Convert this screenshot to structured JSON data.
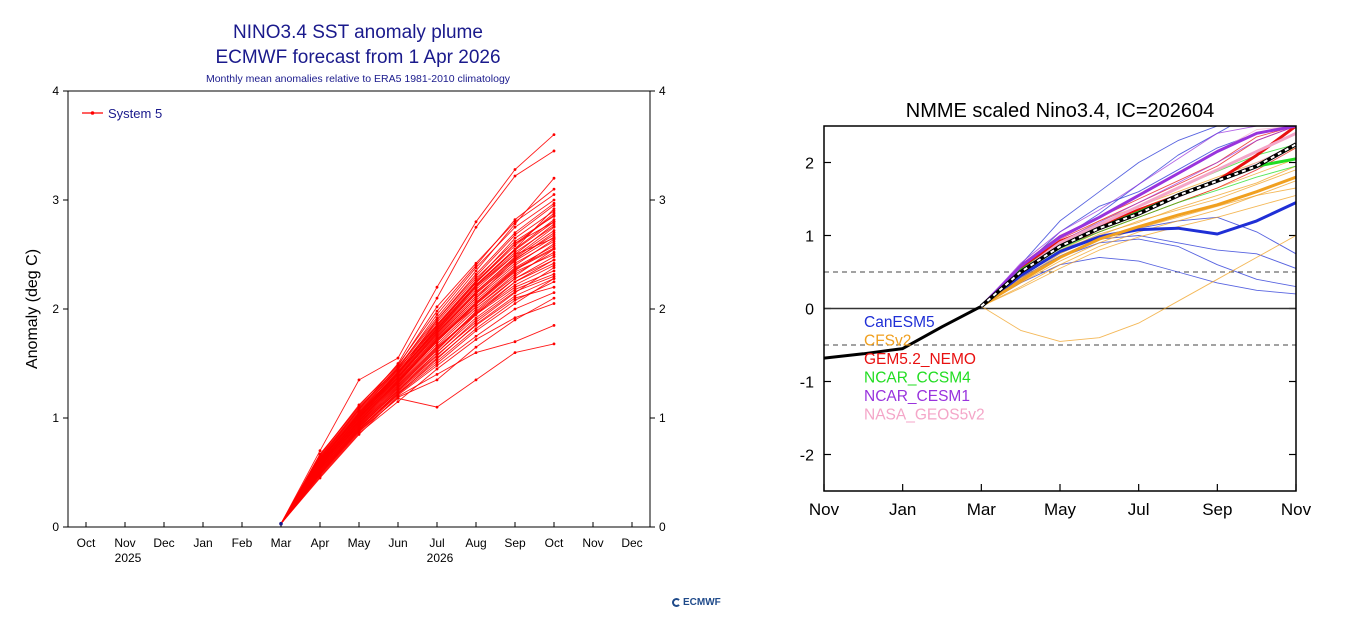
{
  "colors": {
    "ecmwf_title": "#1a1a8c",
    "ecmwf_series": "#ff0000",
    "nmme_canesm5": "#1f2fd6",
    "nmme_cfsv2": "#f0a020",
    "nmme_gem": "#e81010",
    "nmme_ncar_ccsm4": "#22dd22",
    "nmme_ncar_cesm1": "#9933dd",
    "nmme_nasa": "#f4a6c8",
    "nmme_observed": "#000000"
  },
  "chart_data": [
    {
      "type": "line",
      "title": "NINO3.4 SST anomaly plume",
      "subtitle": "ECMWF forecast from 1 Apr 2026",
      "caption": "Monthly mean anomalies relative to ERA5 1981-2010 climatology",
      "ylabel": "Anomaly (deg C)",
      "xlabel": "",
      "categories": [
        "Oct",
        "Nov",
        "Dec",
        "Jan",
        "Feb",
        "Mar",
        "Apr",
        "May",
        "Jun",
        "Jul",
        "Aug",
        "Sep",
        "Oct",
        "Nov",
        "Dec"
      ],
      "year_labels": [
        {
          "label": "2025",
          "category_index": 1
        },
        {
          "label": "2026",
          "category_index": 9
        }
      ],
      "ylim": [
        0,
        4
      ],
      "yticks": [
        "0",
        "1",
        "2",
        "3",
        "4"
      ],
      "legend": {
        "position": "top-left",
        "label": "System 5"
      },
      "series_name": "System 5",
      "series_color": "#ff0000",
      "start_index": 5,
      "start_value": 0.03,
      "members": [
        [
          0.03,
          0.62,
          1.02,
          1.41,
          1.82,
          2.22,
          2.55,
          2.92
        ],
        [
          0.03,
          0.55,
          0.95,
          1.32,
          1.72,
          2.02,
          2.3,
          2.55
        ],
        [
          0.03,
          0.7,
          1.35,
          1.55,
          2.2,
          2.8,
          3.28,
          3.6
        ],
        [
          0.03,
          0.66,
          1.12,
          1.48,
          2.02,
          2.42,
          2.8,
          3.05
        ],
        [
          0.03,
          0.5,
          0.9,
          1.22,
          1.5,
          1.8,
          2.05,
          2.28
        ],
        [
          0.03,
          0.58,
          1.0,
          1.4,
          1.9,
          2.3,
          2.68,
          2.95
        ],
        [
          0.03,
          0.45,
          0.85,
          1.2,
          1.4,
          1.6,
          1.7,
          1.85
        ],
        [
          0.03,
          0.6,
          1.05,
          1.45,
          1.85,
          2.25,
          2.6,
          2.8
        ],
        [
          0.03,
          0.52,
          0.92,
          1.25,
          1.6,
          1.95,
          2.25,
          2.45
        ],
        [
          0.03,
          0.48,
          0.88,
          1.18,
          1.1,
          1.35,
          1.6,
          1.68
        ],
        [
          0.03,
          0.64,
          1.08,
          1.5,
          2.1,
          2.75,
          3.22,
          3.45
        ],
        [
          0.03,
          0.57,
          0.98,
          1.35,
          1.75,
          2.1,
          2.45,
          2.7
        ],
        [
          0.03,
          0.53,
          0.94,
          1.3,
          1.65,
          1.95,
          2.2,
          2.35
        ],
        [
          0.03,
          0.61,
          1.03,
          1.42,
          1.8,
          2.2,
          2.5,
          2.65
        ],
        [
          0.03,
          0.46,
          0.86,
          1.15,
          1.45,
          1.72,
          1.92,
          2.05
        ],
        [
          0.03,
          0.59,
          1.01,
          1.38,
          1.78,
          2.15,
          2.48,
          2.75
        ],
        [
          0.03,
          0.56,
          0.97,
          1.33,
          1.7,
          2.05,
          2.35,
          2.6
        ],
        [
          0.03,
          0.63,
          1.06,
          1.44,
          1.88,
          2.28,
          2.62,
          2.85
        ],
        [
          0.03,
          0.49,
          0.89,
          1.24,
          1.55,
          1.85,
          2.1,
          2.2
        ],
        [
          0.03,
          0.67,
          1.1,
          1.46,
          1.95,
          2.38,
          2.75,
          3.0
        ],
        [
          0.03,
          0.54,
          0.93,
          1.28,
          1.62,
          1.98,
          2.28,
          2.48
        ],
        [
          0.03,
          0.51,
          0.91,
          1.26,
          1.58,
          1.88,
          2.15,
          2.38
        ],
        [
          0.03,
          0.62,
          1.04,
          1.43,
          1.84,
          2.24,
          2.58,
          2.88
        ],
        [
          0.03,
          0.47,
          0.87,
          1.19,
          1.35,
          1.65,
          1.9,
          2.1
        ],
        [
          0.03,
          0.58,
          0.99,
          1.37,
          1.76,
          2.12,
          2.42,
          2.62
        ],
        [
          0.03,
          0.65,
          1.09,
          1.47,
          1.92,
          2.35,
          2.78,
          3.2
        ],
        [
          0.03,
          0.55,
          0.96,
          1.31,
          1.68,
          2.02,
          2.32,
          2.52
        ],
        [
          0.03,
          0.6,
          1.02,
          1.39,
          1.8,
          2.18,
          2.5,
          2.78
        ],
        [
          0.03,
          0.5,
          0.9,
          1.23,
          1.52,
          1.82,
          2.08,
          2.25
        ],
        [
          0.03,
          0.63,
          1.07,
          1.45,
          1.86,
          2.26,
          2.65,
          2.9
        ],
        [
          0.03,
          0.57,
          0.97,
          1.34,
          1.73,
          2.08,
          2.38,
          2.58
        ],
        [
          0.03,
          0.53,
          0.95,
          1.29,
          1.64,
          1.97,
          2.25,
          2.42
        ],
        [
          0.03,
          0.59,
          1.0,
          1.36,
          1.77,
          2.14,
          2.46,
          2.68
        ],
        [
          0.03,
          0.61,
          1.03,
          1.41,
          1.83,
          2.22,
          2.55,
          2.82
        ],
        [
          0.03,
          0.48,
          0.88,
          1.21,
          1.48,
          1.75,
          2.0,
          2.15
        ],
        [
          0.03,
          0.56,
          0.98,
          1.33,
          1.72,
          2.06,
          2.36,
          2.55
        ],
        [
          0.03,
          0.64,
          1.08,
          1.46,
          1.9,
          2.32,
          2.7,
          2.97
        ],
        [
          0.03,
          0.52,
          0.92,
          1.27,
          1.6,
          1.92,
          2.18,
          2.32
        ],
        [
          0.03,
          0.58,
          1.01,
          1.38,
          1.79,
          2.16,
          2.47,
          2.72
        ],
        [
          0.03,
          0.54,
          0.94,
          1.3,
          1.66,
          2.0,
          2.28,
          2.45
        ],
        [
          0.03,
          0.6,
          1.02,
          1.4,
          1.81,
          2.2,
          2.52,
          2.76
        ],
        [
          0.03,
          0.49,
          0.89,
          1.22,
          1.54,
          1.86,
          2.12,
          2.28
        ],
        [
          0.03,
          0.62,
          1.05,
          1.42,
          1.85,
          2.24,
          2.6,
          2.86
        ],
        [
          0.03,
          0.55,
          0.96,
          1.32,
          1.7,
          2.04,
          2.34,
          2.5
        ],
        [
          0.03,
          0.57,
          0.99,
          1.35,
          1.74,
          2.1,
          2.4,
          2.64
        ],
        [
          0.03,
          0.51,
          0.91,
          1.25,
          1.57,
          1.9,
          2.16,
          2.3
        ],
        [
          0.03,
          0.59,
          1.0,
          1.37,
          1.78,
          2.14,
          2.44,
          2.66
        ],
        [
          0.03,
          0.53,
          0.93,
          1.28,
          1.63,
          1.96,
          2.22,
          2.4
        ],
        [
          0.03,
          0.66,
          1.11,
          1.49,
          1.98,
          2.4,
          2.82,
          3.1
        ],
        [
          0.03,
          0.56,
          0.97,
          1.34,
          1.71,
          2.06,
          2.37,
          2.56
        ],
        [
          0.03,
          0.61,
          1.04,
          1.41,
          1.82,
          2.21,
          2.54,
          2.8
        ]
      ]
    },
    {
      "type": "line",
      "title": "NMME scaled Nino3.4, IC=202604",
      "xlabel": "",
      "ylabel": "",
      "xticks": [
        "Nov",
        "Jan",
        "Mar",
        "May",
        "Jul",
        "Sep",
        "Nov"
      ],
      "xlim": [
        0,
        12
      ],
      "ylim": [
        -2.5,
        2.5
      ],
      "yticks": [
        "-2",
        "-1",
        "0",
        "1",
        "2"
      ],
      "thresholds": [
        0.5,
        -0.5
      ],
      "legend": {
        "position": "left-middle",
        "entries": [
          "CanESM5",
          "CFSv2",
          "GEM5.2_NEMO",
          "NCAR_CCSM4",
          "NCAR_CESM1",
          "NASA_GEOS5v2"
        ]
      },
      "observed": {
        "x": [
          0,
          1,
          2,
          3,
          4
        ],
        "y": [
          -0.68,
          -0.62,
          -0.55,
          -0.25,
          0.03
        ]
      },
      "forecast_start": {
        "x": 4,
        "y": 0.03
      },
      "forecast_x": [
        4,
        5,
        6,
        7,
        8,
        9,
        10,
        11,
        12
      ],
      "models": [
        {
          "name": "CanESM5",
          "color": "#1f2fd6",
          "mean": [
            0.03,
            0.45,
            0.78,
            0.98,
            1.08,
            1.1,
            1.02,
            1.2,
            1.45
          ],
          "members": [
            [
              0.03,
              0.5,
              0.95,
              1.3,
              1.7,
              2.1,
              2.4,
              2.7,
              2.9
            ],
            [
              0.03,
              0.4,
              0.7,
              0.9,
              0.95,
              0.85,
              0.6,
              0.4,
              0.3
            ],
            [
              0.03,
              0.55,
              1.05,
              1.4,
              1.6,
              1.9,
              2.2,
              2.4,
              2.5
            ],
            [
              0.03,
              0.35,
              0.6,
              0.7,
              0.65,
              0.5,
              0.35,
              0.25,
              0.2
            ],
            [
              0.03,
              0.45,
              0.8,
              1.0,
              1.1,
              1.2,
              1.25,
              1.05,
              0.75
            ],
            [
              0.03,
              0.6,
              1.2,
              1.6,
              2.0,
              2.3,
              2.5,
              2.5,
              2.5
            ],
            [
              0.03,
              0.42,
              0.72,
              0.95,
              1.0,
              0.9,
              0.8,
              0.75,
              0.55
            ]
          ]
        },
        {
          "name": "CFSv2",
          "color": "#f0a020",
          "mean": [
            0.03,
            0.38,
            0.7,
            0.95,
            1.12,
            1.28,
            1.42,
            1.6,
            1.8
          ],
          "members": [
            [
              0.03,
              -0.3,
              -0.45,
              -0.4,
              -0.2,
              0.1,
              0.4,
              0.7,
              1.0
            ],
            [
              0.03,
              0.5,
              0.9,
              1.2,
              1.4,
              1.6,
              1.8,
              2.0,
              2.2
            ],
            [
              0.03,
              0.4,
              0.75,
              1.0,
              1.2,
              1.35,
              1.5,
              1.7,
              1.9
            ],
            [
              0.03,
              0.3,
              0.6,
              0.85,
              1.05,
              1.2,
              1.35,
              1.55,
              1.75
            ],
            [
              0.03,
              0.45,
              0.8,
              1.05,
              1.25,
              1.45,
              1.65,
              1.85,
              2.05
            ],
            [
              0.03,
              0.35,
              0.65,
              0.9,
              1.1,
              1.25,
              1.4,
              1.55,
              1.65
            ],
            [
              0.03,
              0.42,
              0.78,
              1.02,
              1.18,
              1.38,
              1.55,
              1.72,
              1.95
            ],
            [
              0.03,
              0.28,
              0.55,
              0.8,
              0.98,
              1.12,
              1.25,
              1.4,
              1.55
            ]
          ]
        },
        {
          "name": "GEM5.2_NEMO",
          "color": "#e81010",
          "mean": [
            0.03,
            0.55,
            0.92,
            1.12,
            1.35,
            1.55,
            1.75,
            2.1,
            2.5
          ],
          "members": [
            [
              0.03,
              0.6,
              1.0,
              1.25,
              1.5,
              1.75,
              2.0,
              2.35,
              2.5
            ],
            [
              0.03,
              0.5,
              0.85,
              1.05,
              1.25,
              1.45,
              1.65,
              1.9,
              2.2
            ],
            [
              0.03,
              0.58,
              0.95,
              1.2,
              1.45,
              1.7,
              1.95,
              2.3,
              2.5
            ]
          ]
        },
        {
          "name": "NCAR_CCSM4",
          "color": "#22dd22",
          "mean": [
            0.03,
            0.52,
            0.88,
            1.1,
            1.32,
            1.55,
            1.75,
            1.95,
            2.05
          ],
          "members": [
            [
              0.03,
              0.55,
              0.92,
              1.15,
              1.4,
              1.65,
              1.88,
              2.1,
              2.25
            ],
            [
              0.03,
              0.48,
              0.82,
              1.05,
              1.25,
              1.45,
              1.62,
              1.8,
              1.95
            ]
          ]
        },
        {
          "name": "NCAR_CESM1",
          "color": "#9933dd",
          "mean": [
            0.03,
            0.58,
            0.98,
            1.25,
            1.55,
            1.85,
            2.15,
            2.4,
            2.5
          ],
          "members": [
            [
              0.03,
              0.62,
              1.05,
              1.35,
              1.7,
              2.05,
              2.4,
              2.5,
              2.5
            ],
            [
              0.03,
              0.55,
              0.92,
              1.18,
              1.45,
              1.72,
              2.0,
              2.3,
              2.5
            ]
          ]
        },
        {
          "name": "NASA_GEOS5v2",
          "color": "#f4a6c8",
          "mean": [
            0.03,
            0.5,
            0.9,
            1.15,
            1.4,
            1.65,
            1.9,
            2.15,
            2.4
          ],
          "members": [
            [
              0.03,
              0.55,
              0.95,
              1.25,
              1.55,
              1.85,
              2.15,
              2.45,
              2.5
            ],
            [
              0.03,
              0.45,
              0.85,
              1.08,
              1.3,
              1.52,
              1.75,
              2.0,
              2.25
            ]
          ]
        }
      ],
      "ensemble_mean": {
        "color": "#000000",
        "y": [
          0.03,
          0.5,
          0.85,
          1.1,
          1.3,
          1.55,
          1.75,
          1.95,
          2.25
        ]
      }
    }
  ],
  "footer": {
    "logo_text": "ECMWF"
  }
}
